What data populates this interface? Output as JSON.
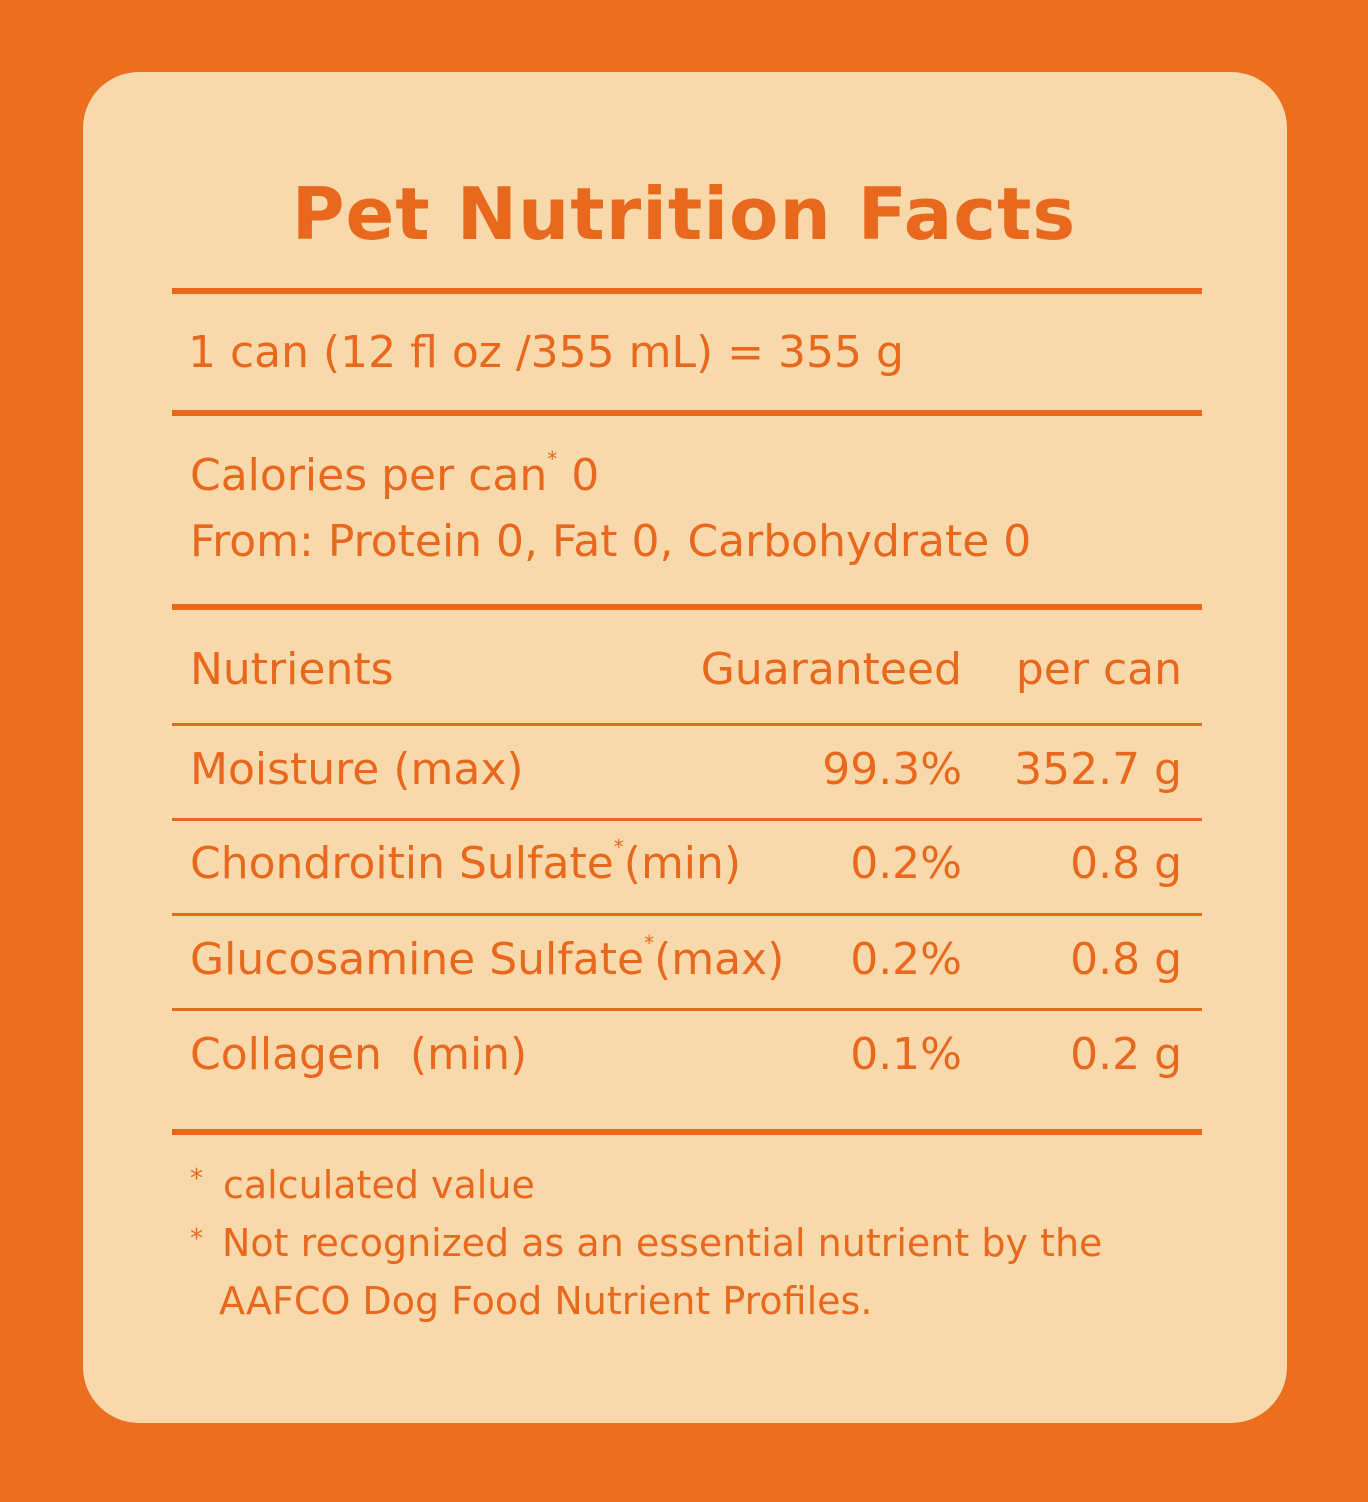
{
  "title": "Pet Nutrition Facts",
  "serving": "1 can (12 fl oz /355 mL) = 355 g",
  "calories": {
    "label": "Calories per can",
    "marker": "*",
    "value": "0",
    "from_line": "From: Protein 0, Fat 0, Carbohydrate 0"
  },
  "table": {
    "headers": {
      "nutrients": "Nutrients",
      "guaranteed": "Guaranteed",
      "per_can": "per can"
    },
    "rows": [
      {
        "name": "Moisture (max)",
        "marker": "",
        "suffix": "",
        "guaranteed": "99.3%",
        "per_can": "352.7 g"
      },
      {
        "name": "Chondroitin Sulfate",
        "marker": "*",
        "suffix": "(min)",
        "guaranteed": "0.2%",
        "per_can": "0.8 g"
      },
      {
        "name": "Glucosamine Sulfate",
        "marker": "*",
        "suffix": "(max)",
        "guaranteed": "0.2%",
        "per_can": "0.8 g"
      },
      {
        "name": "Collagen  (min)",
        "marker": "",
        "suffix": "",
        "guaranteed": "0.1%",
        "per_can": "0.2 g"
      }
    ]
  },
  "footnotes": [
    {
      "marker": "*",
      "text": "calculated value"
    },
    {
      "marker": "*",
      "text": "Not recognized as an essential nutrient by the",
      "text_line2": "AAFCO Dog Food Nutrient Profiles."
    }
  ]
}
